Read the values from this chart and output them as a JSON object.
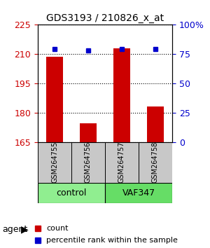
{
  "title": "GDS3193 / 210826_x_at",
  "samples": [
    "GSM264755",
    "GSM264756",
    "GSM264757",
    "GSM264758"
  ],
  "counts": [
    208.5,
    174.5,
    213.0,
    183.0
  ],
  "percentile_ranks": [
    79,
    78,
    79,
    79
  ],
  "groups": [
    "control",
    "control",
    "VAF347",
    "VAF347"
  ],
  "group_colors": {
    "control": "#90EE90",
    "VAF347": "#00CC00"
  },
  "ylim_left": [
    165,
    225
  ],
  "ylim_right": [
    0,
    100
  ],
  "yticks_left": [
    165,
    180,
    195,
    210,
    225
  ],
  "yticks_right": [
    0,
    25,
    50,
    75,
    100
  ],
  "yticklabels_right": [
    "0",
    "25",
    "50",
    "75",
    "100%"
  ],
  "bar_color": "#CC0000",
  "dot_color": "#0000CC",
  "bar_width": 0.4,
  "legend_count_label": "count",
  "legend_pct_label": "percentile rank within the sample",
  "agent_label": "agent",
  "bg_plot": "#FFFFFF",
  "bg_sample_row": "#C0C0C0",
  "grid_color": "#000000"
}
